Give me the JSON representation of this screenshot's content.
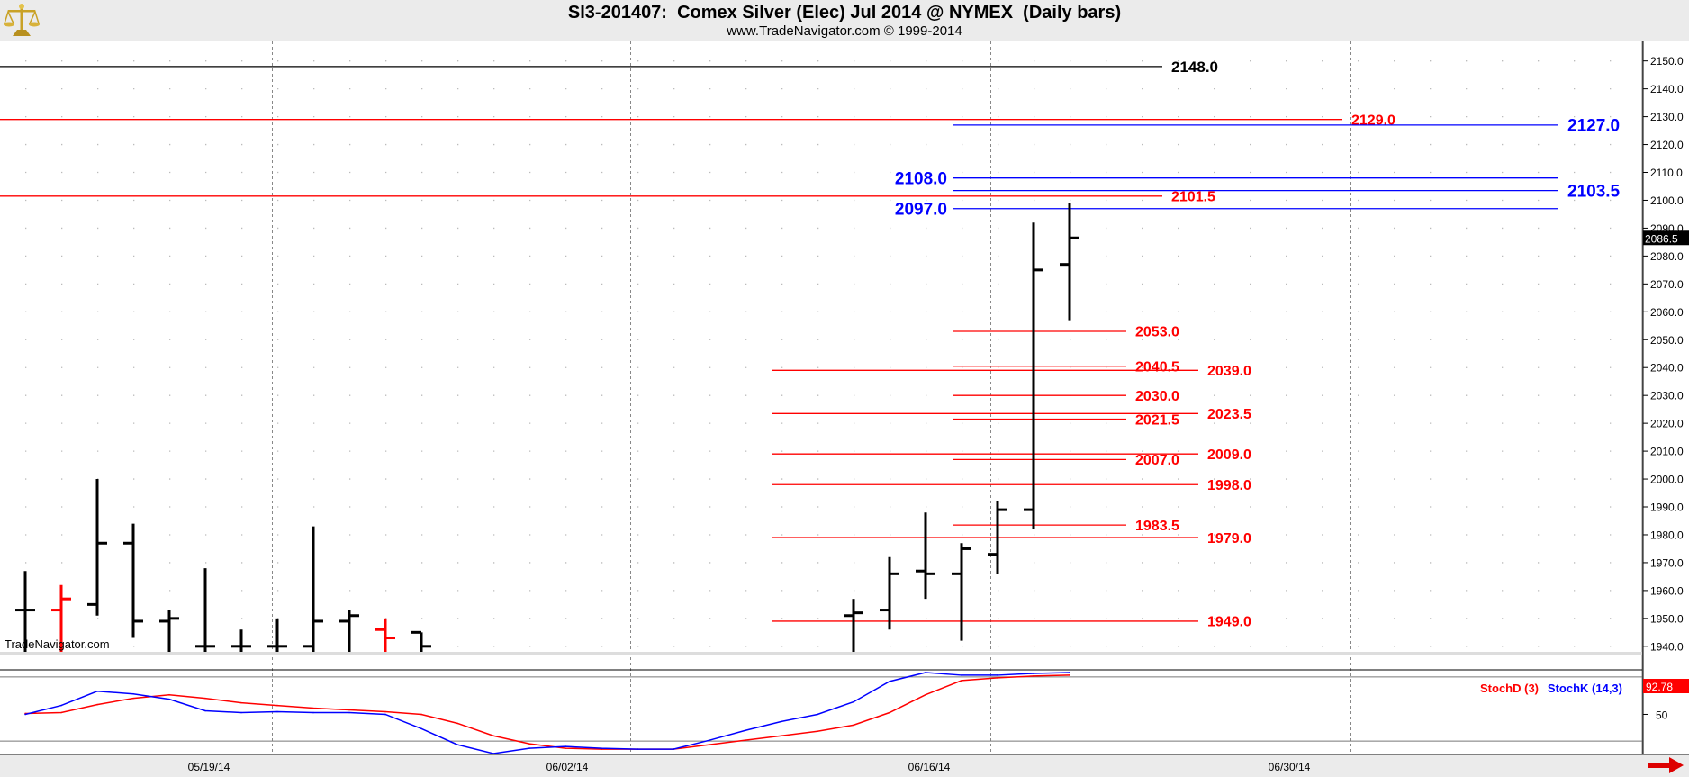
{
  "title": "SI3-201407:  Comex Silver (Elec) Jul 2014 @ NYMEX  (Daily bars)",
  "subtitle": "www.TradeNavigator.com © 1999-2014",
  "watermark": "TradeNavigator.com",
  "logo_icon": "gold-scale-logo-icon",
  "colors": {
    "bar": "#000000",
    "bar_alt": "#ff0000",
    "red_level": "#ff0000",
    "blue_level": "#0000ff",
    "black_level": "#000000",
    "stochD": "#ff0000",
    "stochK": "#0000ff",
    "last_price_bg": "#000000",
    "stoch_badge_bg": "#ff0000"
  },
  "chart_data": [
    {
      "type": "ohlc",
      "title": "SI3-201407:  Comex Silver (Elec) Jul 2014 @ NYMEX  (Daily bars)",
      "ylim": [
        1938,
        2157
      ],
      "yticks": [
        1940,
        1950,
        1960,
        1970,
        1980,
        1990,
        2000,
        2010,
        2020,
        2030,
        2040,
        2050,
        2060,
        2070,
        2080,
        2090,
        2100,
        2110,
        2120,
        2130,
        2140,
        2150
      ],
      "ytick_labels": [
        "1940.0",
        "1950.0",
        "1960.0",
        "1970.0",
        "1980.0",
        "1990.0",
        "2000.0",
        "2010.0",
        "2020.0",
        "2030.0",
        "2040.0",
        "2050.0",
        "2060.0",
        "2070.0",
        "2080.0",
        "2090.0",
        "2100.0",
        "2110.0",
        "2120.0",
        "2130.0",
        "2140.0",
        "2150.0"
      ],
      "x_axis_labels": [
        {
          "label": "05/19/14",
          "slot": 8
        },
        {
          "label": "06/02/14",
          "slot": 18
        },
        {
          "label": "06/16/14",
          "slot": 28
        },
        {
          "label": "06/30/14",
          "slot": 38
        }
      ],
      "bars": [
        {
          "slot": 0,
          "open": 1953,
          "high": 1967,
          "low": 1938,
          "close": 1953,
          "color": "black"
        },
        {
          "slot": 1,
          "open": 1953,
          "high": 1962,
          "low": 1938,
          "close": 1957,
          "color": "red"
        },
        {
          "slot": 2,
          "open": 1955,
          "high": 2000,
          "low": 1951,
          "close": 1977,
          "color": "black"
        },
        {
          "slot": 3,
          "open": 1977,
          "high": 1984,
          "low": 1943,
          "close": 1949,
          "color": "black"
        },
        {
          "slot": 4,
          "open": 1949,
          "high": 1953,
          "low": 1938,
          "close": 1950,
          "color": "black"
        },
        {
          "slot": 5,
          "open": 1940,
          "high": 1968,
          "low": 1938,
          "close": 1940,
          "color": "black"
        },
        {
          "slot": 6,
          "open": 1940,
          "high": 1946,
          "low": 1938,
          "close": 1940,
          "color": "black"
        },
        {
          "slot": 7,
          "open": 1940,
          "high": 1950,
          "low": 1938,
          "close": 1940,
          "color": "black"
        },
        {
          "slot": 8,
          "open": 1940,
          "high": 1983,
          "low": 1938,
          "close": 1949,
          "color": "black"
        },
        {
          "slot": 9,
          "open": 1949,
          "high": 1953,
          "low": 1938,
          "close": 1951,
          "color": "black"
        },
        {
          "slot": 10,
          "open": 1946,
          "high": 1950,
          "low": 1938,
          "close": 1943,
          "color": "red"
        },
        {
          "slot": 11,
          "open": 1945,
          "high": 1945,
          "low": 1938,
          "close": 1940,
          "color": "black"
        },
        {
          "slot": 23,
          "open": 1951,
          "high": 1957,
          "low": 1938,
          "close": 1952,
          "color": "black"
        },
        {
          "slot": 24,
          "open": 1953,
          "high": 1972,
          "low": 1946,
          "close": 1966,
          "color": "black"
        },
        {
          "slot": 25,
          "open": 1967,
          "high": 1988,
          "low": 1957,
          "close": 1966,
          "color": "black"
        },
        {
          "slot": 26,
          "open": 1966,
          "high": 1977,
          "low": 1942,
          "close": 1975,
          "color": "black"
        },
        {
          "slot": 27,
          "open": 1973,
          "high": 1992,
          "low": 1966,
          "close": 1989,
          "color": "black"
        },
        {
          "slot": 28,
          "open": 1989,
          "high": 2092,
          "low": 1982,
          "close": 2075,
          "color": "black"
        },
        {
          "slot": 29,
          "open": 2077,
          "high": 2099,
          "low": 2057,
          "close": 2086.5,
          "color": "black"
        }
      ],
      "last_price": "2086.5",
      "levels": [
        {
          "value": 2148.0,
          "label": "2148.0",
          "color": "black",
          "from_slot": -1,
          "to_slot": 31.0,
          "label_side": "right"
        },
        {
          "value": 2129.0,
          "label": "2129.0",
          "color": "red",
          "from_slot": -1,
          "to_slot": 36.0,
          "label_side": "right"
        },
        {
          "value": 2127.0,
          "label": "2127.0",
          "color": "blue",
          "from_slot": 26,
          "to_slot": 42.0,
          "label_side": "right"
        },
        {
          "value": 2108.0,
          "label": "2108.0",
          "color": "blue",
          "from_slot": 26,
          "to_slot": 42.0,
          "label_side": "left"
        },
        {
          "value": 2103.5,
          "label": "2103.5",
          "color": "blue",
          "from_slot": 26,
          "to_slot": 42.0,
          "label_side": "right"
        },
        {
          "value": 2101.5,
          "label": "2101.5",
          "color": "red",
          "from_slot": -1,
          "to_slot": 31.0,
          "label_side": "right"
        },
        {
          "value": 2097.0,
          "label": "2097.0",
          "color": "blue",
          "from_slot": 26,
          "to_slot": 42.0,
          "label_side": "left"
        },
        {
          "value": 2053.0,
          "label": "2053.0",
          "color": "red",
          "from_slot": 26,
          "to_slot": 30.0,
          "label_side": "right"
        },
        {
          "value": 2040.5,
          "label": "2040.5",
          "color": "red",
          "from_slot": 26,
          "to_slot": 30.0,
          "label_side": "right"
        },
        {
          "value": 2039.0,
          "label": "2039.0",
          "color": "red",
          "from_slot": 21,
          "to_slot": 32.0,
          "label_side": "right"
        },
        {
          "value": 2030.0,
          "label": "2030.0",
          "color": "red",
          "from_slot": 26,
          "to_slot": 30.0,
          "label_side": "right"
        },
        {
          "value": 2023.5,
          "label": "2023.5",
          "color": "red",
          "from_slot": 21,
          "to_slot": 32.0,
          "label_side": "right"
        },
        {
          "value": 2021.5,
          "label": "2021.5",
          "color": "red",
          "from_slot": 26,
          "to_slot": 30.0,
          "label_side": "right"
        },
        {
          "value": 2009.0,
          "label": "2009.0",
          "color": "red",
          "from_slot": 21,
          "to_slot": 32.0,
          "label_side": "right"
        },
        {
          "value": 2007.0,
          "label": "2007.0",
          "color": "red",
          "from_slot": 26,
          "to_slot": 30.0,
          "label_side": "right"
        },
        {
          "value": 1998.0,
          "label": "1998.0",
          "color": "red",
          "from_slot": 21,
          "to_slot": 32.0,
          "label_side": "right"
        },
        {
          "value": 1983.5,
          "label": "1983.5",
          "color": "red",
          "from_slot": 26,
          "to_slot": 30.0,
          "label_side": "right"
        },
        {
          "value": 1979.0,
          "label": "1979.0",
          "color": "red",
          "from_slot": 21,
          "to_slot": 32.0,
          "label_side": "right"
        },
        {
          "value": 1949.0,
          "label": "1949.0",
          "color": "red",
          "from_slot": 21,
          "to_slot": 32.0,
          "label_side": "right"
        }
      ],
      "grid": true
    },
    {
      "type": "line",
      "ylim": [
        5,
        100
      ],
      "yticks": [
        50
      ],
      "ytick_labels": [
        "50"
      ],
      "ref_lines": [
        92,
        20
      ],
      "series": [
        {
          "name": "StochD (3)",
          "color": "red",
          "x": [
            0,
            1,
            2,
            3,
            4,
            5,
            6,
            7,
            8,
            9,
            10,
            11,
            12,
            13,
            14,
            15,
            16,
            17,
            18,
            19,
            20,
            21,
            22,
            23,
            24,
            25,
            26,
            27,
            28,
            29
          ],
          "values": [
            51,
            52,
            61,
            68,
            72,
            68,
            63,
            60,
            57,
            55,
            53,
            50,
            40,
            26,
            17,
            12,
            11,
            11,
            11,
            16,
            21,
            26,
            31,
            38,
            52,
            72,
            88,
            91,
            93,
            94
          ]
        },
        {
          "name": "StochK (14,3)",
          "color": "blue",
          "x": [
            0,
            1,
            2,
            3,
            4,
            5,
            6,
            7,
            8,
            9,
            10,
            11,
            12,
            13,
            14,
            15,
            16,
            17,
            18,
            19,
            20,
            21,
            22,
            23,
            24,
            25,
            26,
            27,
            28,
            29
          ],
          "values": [
            50,
            60,
            76,
            73,
            67,
            54,
            52,
            53,
            52,
            52,
            50,
            34,
            16,
            6,
            12,
            14,
            12,
            11,
            11,
            21,
            32,
            42,
            50,
            64,
            87,
            97,
            94,
            94,
            96,
            97
          ]
        }
      ],
      "legend": "top-right",
      "last_value": "92.78"
    }
  ]
}
